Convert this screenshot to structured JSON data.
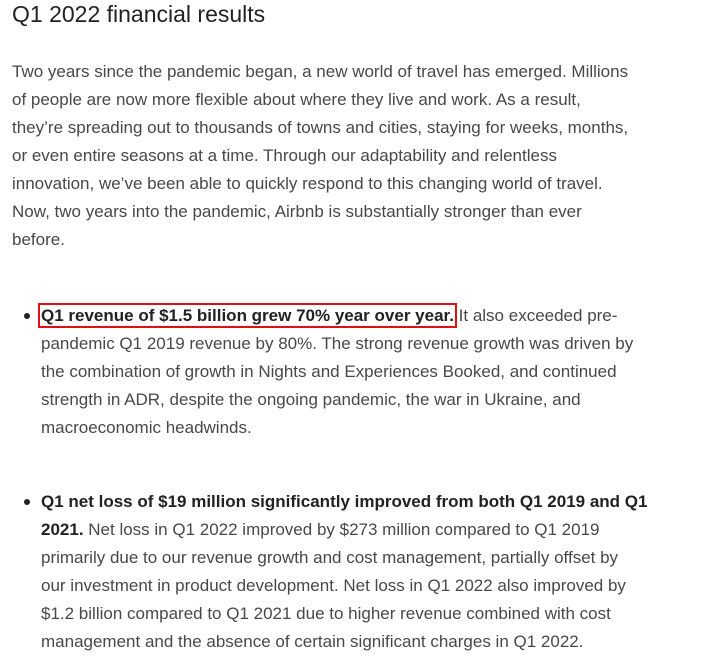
{
  "title": "Q1 2022 financial results",
  "intro_lines": [
    "Two years since the pandemic began, a new world of travel has emerged. Millions",
    "of people are now more flexible about where they live and work. As a result,",
    "they’re spreading out to thousands of towns and cities, staying for weeks, months,",
    "or even entire seasons at a time. Through our adaptability and relentless",
    "innovation, we’ve been able to quickly respond to this changing world of travel.",
    "Now, two years into the pandemic, Airbnb is substantially stronger than ever",
    "before."
  ],
  "bullets": [
    {
      "bold": "Q1 revenue of $1.5 billion grew 70% year over year.",
      "first_rest": " It also exceeded pre-",
      "lines": [
        "pandemic Q1 2019  revenue by 80%. The strong revenue growth was driven by",
        "the combination of growth in Nights and Experiences Booked, and continued",
        "strength in ADR, despite the ongoing pandemic, the war in Ukraine, and",
        "macroeconomic headwinds."
      ]
    },
    {
      "bold_line1": "Q1 net loss of $19 million significantly improved from both Q1 2019 and Q1",
      "bold_line2": "2021.",
      "second_rest": " Net loss in Q1 2022 improved by $273 million compared to Q1 2019",
      "lines": [
        "primarily due to our revenue growth and cost management, partially offset by",
        "our investment in product development. Net loss in Q1 2022 also improved by",
        "$1.2 billion compared to Q1 2021 due to higher revenue combined with cost",
        "management and the absence of certain significant charges in Q1 2022."
      ]
    }
  ],
  "highlight_color": "#e01010"
}
